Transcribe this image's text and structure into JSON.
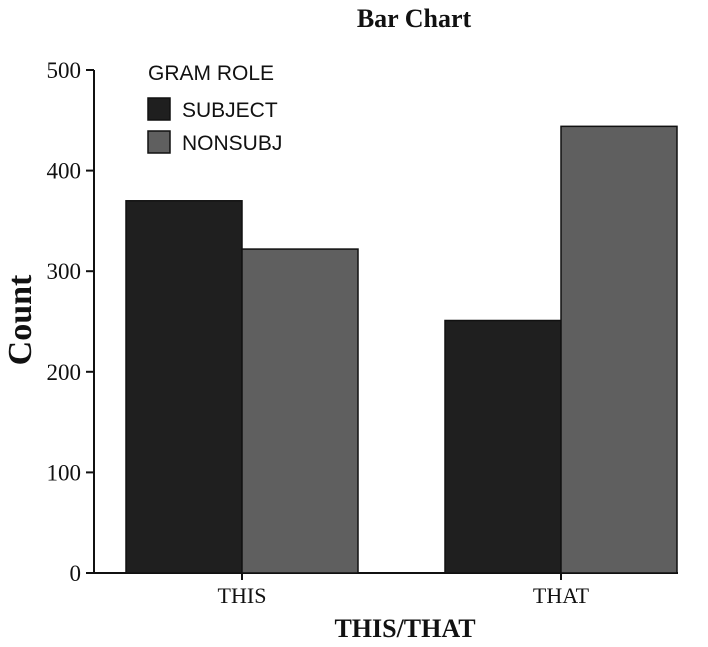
{
  "chart_data": {
    "type": "bar",
    "title": "Bar Chart",
    "xlabel": "THIS/THAT",
    "ylabel": "Count",
    "categories": [
      "THIS",
      "THAT"
    ],
    "series": [
      {
        "name": "SUBJECT",
        "values": [
          370,
          251
        ],
        "color": "#1f1f1f"
      },
      {
        "name": "NONSUBJ",
        "values": [
          322,
          444
        ],
        "color": "#5f5f5f"
      }
    ],
    "ylim": [
      0,
      500
    ],
    "yticks": [
      0,
      100,
      200,
      300,
      400,
      500
    ],
    "legend": {
      "title": "GRAM ROLE",
      "placement": "top-left"
    },
    "grid": false
  }
}
